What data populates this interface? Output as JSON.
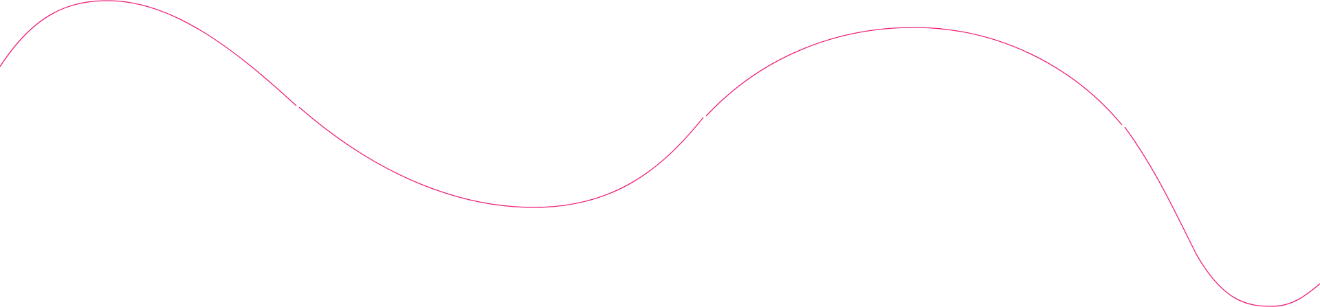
{
  "decoration": {
    "type": "wave-line",
    "segments": 4,
    "stroke_color": "#ec1e79",
    "background_color": "#ffffff"
  }
}
